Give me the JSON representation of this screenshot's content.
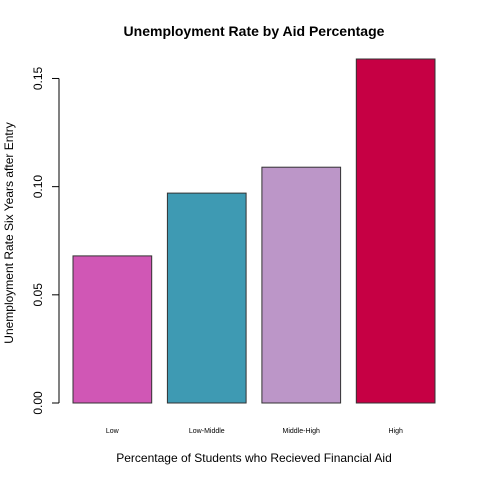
{
  "chart_data": {
    "type": "bar",
    "title": "Unemployment Rate by Aid Percentage",
    "xlabel": "Percentage of Students who Recieved Financial Aid",
    "ylabel": "Unemployment Rate Six Years after Entry",
    "categories": [
      "Low",
      "Low-Middle",
      "Middle-High",
      "High"
    ],
    "values": [
      0.068,
      0.097,
      0.109,
      0.159
    ],
    "colors": [
      "#d057b5",
      "#3e9ab3",
      "#bc96c8",
      "#c60044"
    ],
    "yticks": [
      "0.00",
      "0.05",
      "0.10",
      "0.15"
    ],
    "ytick_values": [
      0,
      0.05,
      0.1,
      0.15
    ],
    "ylim": [
      0,
      0.159
    ],
    "grid": false,
    "legend": "none"
  }
}
